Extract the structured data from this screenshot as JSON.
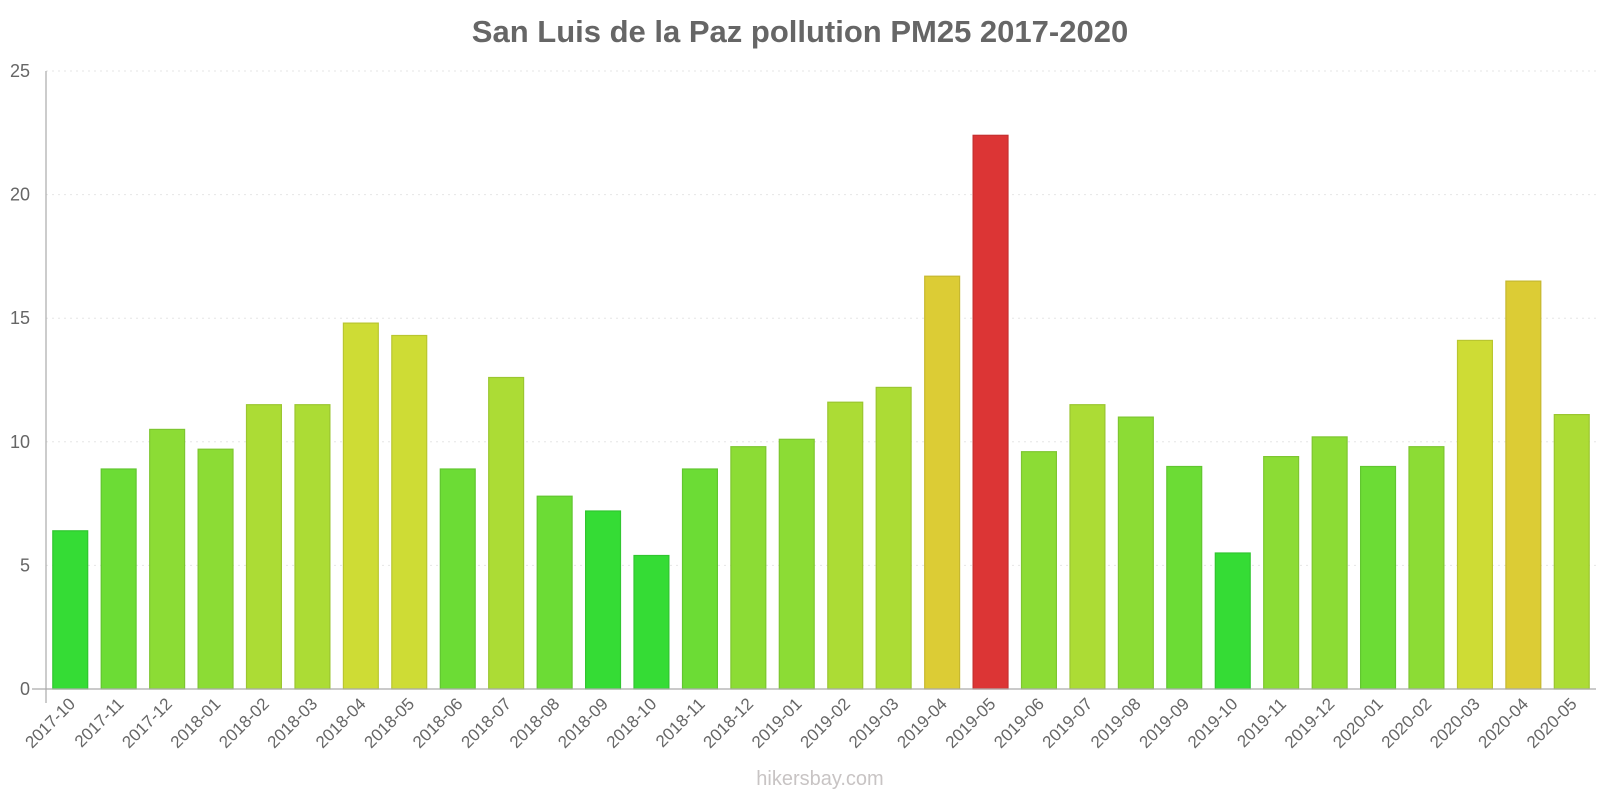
{
  "chart_data": {
    "type": "bar",
    "title": "San Luis de la Paz pollution PM25 2017-2020",
    "xlabel": "",
    "ylabel": "",
    "ylim": [
      0,
      25
    ],
    "yticks": [
      0,
      5,
      10,
      15,
      20,
      25
    ],
    "grid": "horizontal dotted (faint)",
    "legend": null,
    "categories": [
      "2017-10",
      "2017-11",
      "2017-12",
      "2018-01",
      "2018-02",
      "2018-03",
      "2018-04",
      "2018-05",
      "2018-06",
      "2018-07",
      "2018-08",
      "2018-09",
      "2018-10",
      "2018-11",
      "2018-12",
      "2019-01",
      "2019-02",
      "2019-03",
      "2019-04",
      "2019-05",
      "2019-06",
      "2019-07",
      "2019-08",
      "2019-09",
      "2019-10",
      "2019-11",
      "2019-12",
      "2020-01",
      "2020-02",
      "2020-03",
      "2020-04",
      "2020-05"
    ],
    "values": [
      6.4,
      8.9,
      10.5,
      9.7,
      11.5,
      11.5,
      14.8,
      14.3,
      8.9,
      12.6,
      7.8,
      7.2,
      5.4,
      8.9,
      9.8,
      10.1,
      11.6,
      12.2,
      16.7,
      22.4,
      9.6,
      11.5,
      11.0,
      9.0,
      5.5,
      9.4,
      10.2,
      9.0,
      9.8,
      14.1,
      16.5,
      11.1
    ],
    "colors": [
      "#35dc35",
      "#6cdc35",
      "#8cdc35",
      "#8cdc35",
      "#acdc35",
      "#acdc35",
      "#cedc35",
      "#cedc35",
      "#6cdc35",
      "#acdc35",
      "#6cdc35",
      "#35dc35",
      "#35dc35",
      "#6cdc35",
      "#8cdc35",
      "#8cdc35",
      "#acdc35",
      "#acdc35",
      "#dccc35",
      "#dc3535",
      "#8cdc35",
      "#acdc35",
      "#8cdc35",
      "#6cdc35",
      "#35dc35",
      "#8cdc35",
      "#8cdc35",
      "#6cdc35",
      "#8cdc35",
      "#cedc35",
      "#dccc35",
      "#acdc35"
    ]
  },
  "footer": {
    "credit": "hikersbay.com"
  },
  "style": {
    "axis_color": "#aaaaaa",
    "text_color": "#666666",
    "grid_color": "#e6e6e6"
  }
}
